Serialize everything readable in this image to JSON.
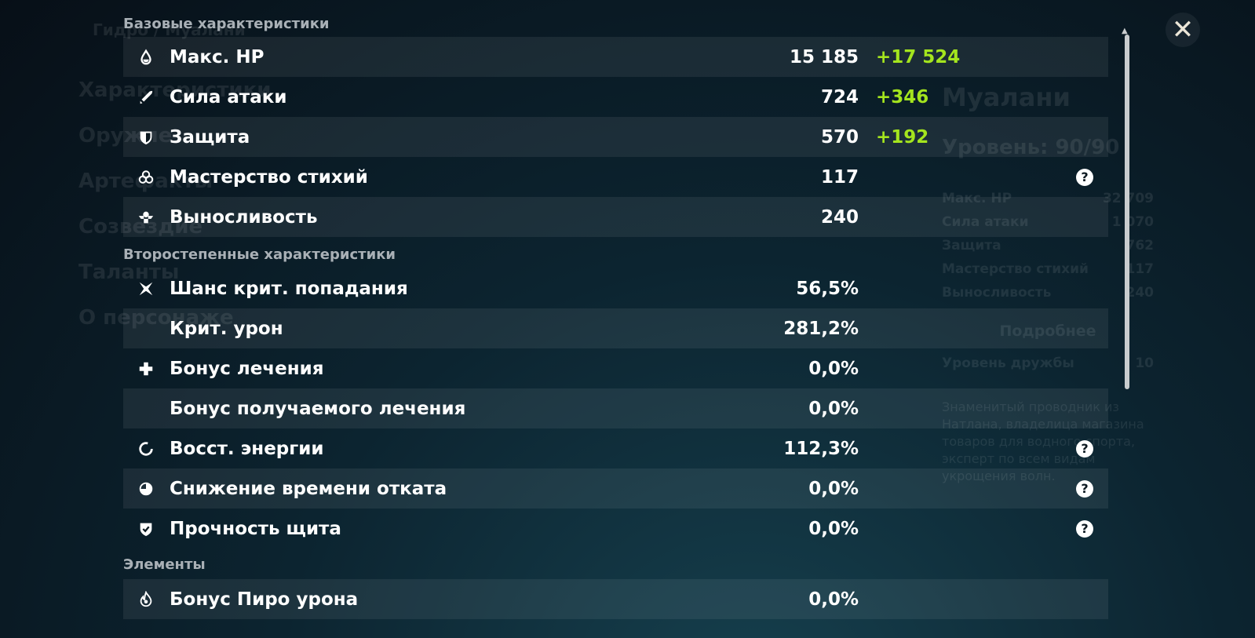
{
  "background": {
    "breadcrumb": "Гидро / Муалани",
    "menu": [
      "Характеристики",
      "Оружие",
      "Артефакты",
      "Созвездие",
      "Таланты",
      "О персонаже"
    ],
    "character": {
      "name": "Муалани",
      "level": "Уровень: 90/90",
      "stats": [
        {
          "label": "Макс. HP",
          "value": "32 709"
        },
        {
          "label": "Сила атаки",
          "value": "1 070"
        },
        {
          "label": "Защита",
          "value": "762"
        },
        {
          "label": "Мастерство стихий",
          "value": "117"
        },
        {
          "label": "Выносливость",
          "value": "240"
        }
      ],
      "details_button": "Подробнее",
      "friendship_label": "Уровень дружбы",
      "friendship_value": "10",
      "description": "Знаменитый проводник из Натлана, владелица магазина товаров для водного спорта, эксперт по всем видам укрощения волн."
    }
  },
  "sections": [
    {
      "title": "Базовые характеристики",
      "rows": [
        {
          "icon": "hp-drop-icon",
          "label": "Макс. HP",
          "value": "15 185",
          "bonus": "+17 524"
        },
        {
          "icon": "sword-icon",
          "label": "Сила атаки",
          "value": "724",
          "bonus": "+346"
        },
        {
          "icon": "shield-icon",
          "label": "Защита",
          "value": "570",
          "bonus": "+192"
        },
        {
          "icon": "elemental-mastery-icon",
          "label": "Мастерство стихий",
          "value": "117",
          "help": "?"
        },
        {
          "icon": "stamina-icon",
          "label": "Выносливость",
          "value": "240"
        }
      ]
    },
    {
      "title": "Второстепенные характеристики",
      "rows": [
        {
          "icon": "crit-rate-icon",
          "label": "Шанс крит. попадания",
          "value": "56,5%"
        },
        {
          "icon": "",
          "label": "Крит. урон",
          "value": "281,2%"
        },
        {
          "icon": "healing-bonus-icon",
          "label": "Бонус лечения",
          "value": "0,0%"
        },
        {
          "icon": "",
          "label": "Бонус получаемого лечения",
          "value": "0,0%"
        },
        {
          "icon": "energy-recharge-icon",
          "label": "Восст. энергии",
          "value": "112,3%",
          "help": "?"
        },
        {
          "icon": "cd-reduction-icon",
          "label": "Снижение времени отката",
          "value": "0,0%",
          "help": "?"
        },
        {
          "icon": "shield-strength-icon",
          "label": "Прочность щита",
          "value": "0,0%",
          "help": "?"
        }
      ]
    },
    {
      "title": "Элементы",
      "rows": [
        {
          "icon": "pyro-icon",
          "label": "Бонус Пиро урона",
          "value": "0,0%"
        }
      ]
    }
  ],
  "close_icon": "✕",
  "colors": {
    "bonus": "#a4e51e"
  }
}
